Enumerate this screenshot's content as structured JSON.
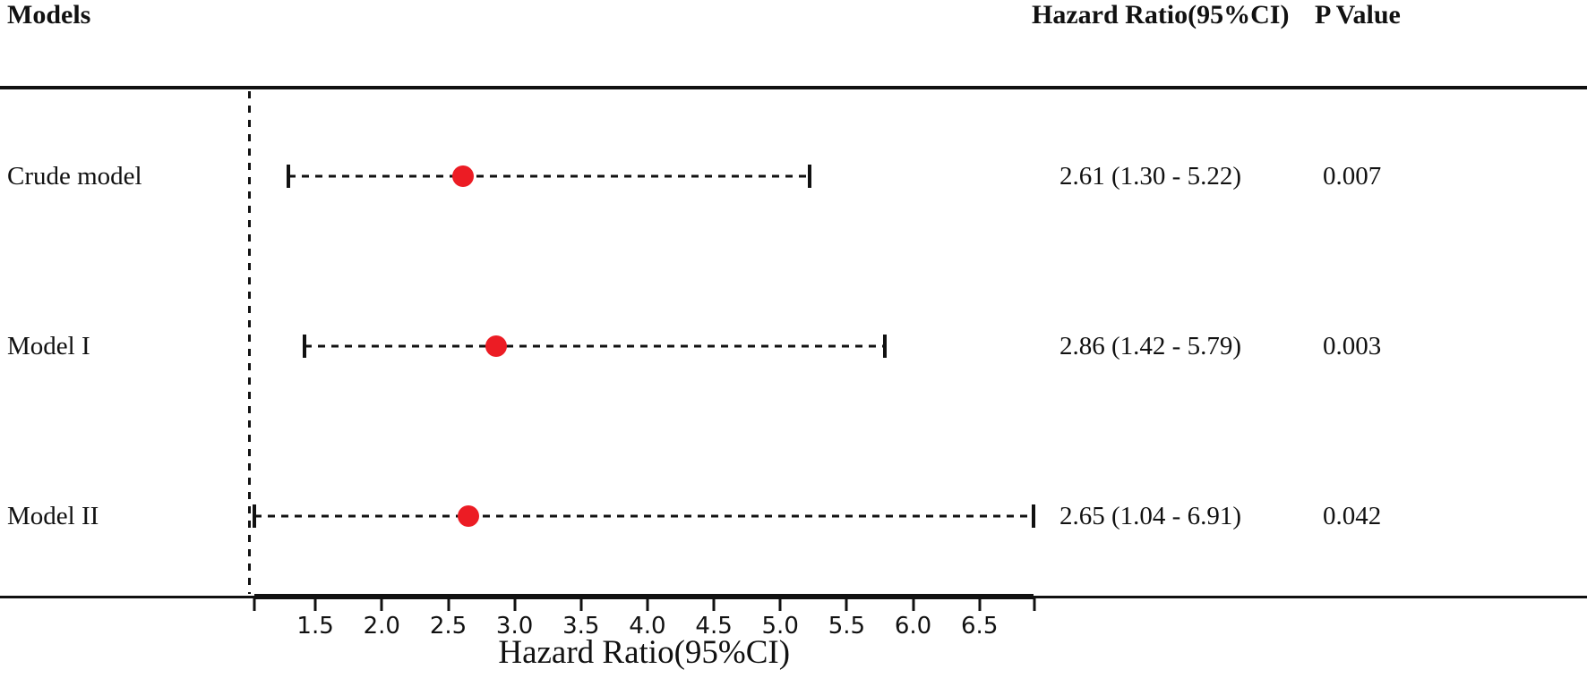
{
  "header": {
    "models": "Models",
    "hazard_ratio": "Hazard Ratio(95%CI)",
    "p_value": "P Value"
  },
  "chart_data": {
    "type": "forest",
    "rows": [
      {
        "label": "Crude model",
        "hr": 2.61,
        "ci_low": 1.3,
        "ci_high": 5.22,
        "hr_text": "2.61 (1.30 - 5.22)",
        "p_text": "0.007"
      },
      {
        "label": "Model I",
        "hr": 2.86,
        "ci_low": 1.42,
        "ci_high": 5.79,
        "hr_text": "2.86 (1.42 - 5.79)",
        "p_text": "0.003"
      },
      {
        "label": "Model II",
        "hr": 2.65,
        "ci_low": 1.04,
        "ci_high": 6.91,
        "hr_text": "2.65 (1.04 - 6.91)",
        "p_text": "0.042"
      }
    ],
    "x_axis": {
      "title": "Hazard Ratio(95%CI)",
      "ticks": [
        1.5,
        2.0,
        2.5,
        3.0,
        3.5,
        4.0,
        4.5,
        5.0,
        5.5,
        6.0,
        6.5
      ],
      "tick_labels": [
        "1.5",
        "2.0",
        "2.5",
        "3.0",
        "3.5",
        "4.0",
        "4.5",
        "5.0",
        "5.5",
        "6.0",
        "6.5"
      ],
      "axis_range": [
        1.04,
        6.91
      ],
      "reference_line": 1.0
    },
    "colors": {
      "marker": "#ec1c24",
      "line": "#111111"
    }
  }
}
